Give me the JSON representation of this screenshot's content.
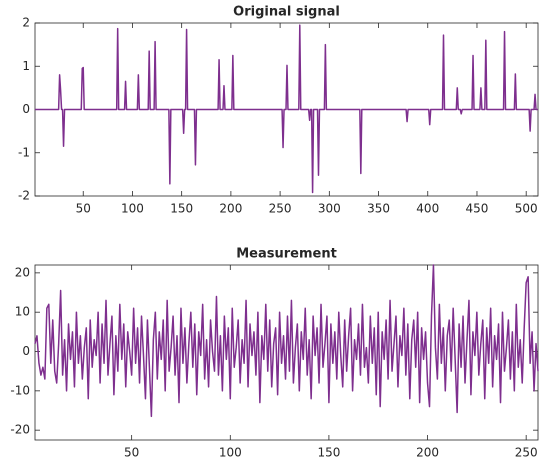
{
  "chart_data": [
    {
      "type": "line",
      "title": "Original signal",
      "color": "#7e2f8e",
      "x": [
        1,
        25,
        26,
        27,
        28,
        29,
        30,
        31,
        48,
        49,
        50,
        51,
        84,
        85,
        86,
        92,
        93,
        94,
        105,
        106,
        107,
        116,
        117,
        118,
        122,
        123,
        124,
        137,
        138,
        139,
        151,
        152,
        153,
        154,
        155,
        156,
        163,
        164,
        165,
        187,
        188,
        189,
        192,
        193,
        194,
        201,
        202,
        203,
        252,
        253,
        254,
        256,
        257,
        258,
        269,
        270,
        271,
        279,
        280,
        281,
        282,
        283,
        284,
        288,
        289,
        290,
        295,
        296,
        297,
        331,
        332,
        333,
        378,
        379,
        380,
        401,
        402,
        403,
        415,
        416,
        417,
        429,
        430,
        431,
        433,
        434,
        435,
        445,
        446,
        447,
        453,
        454,
        455,
        458,
        459,
        460,
        477,
        478,
        479,
        488,
        489,
        490,
        503,
        504,
        505,
        508,
        509,
        510,
        512
      ],
      "values": [
        0,
        0,
        0.8,
        0.45,
        0,
        0,
        -0.85,
        0,
        0,
        0.95,
        0.97,
        0,
        0,
        1.87,
        0,
        0,
        0.65,
        0,
        0,
        0.8,
        0,
        0,
        1.35,
        0,
        0,
        1.57,
        0,
        0,
        -1.72,
        0,
        0,
        -0.55,
        0,
        0,
        1.85,
        0,
        0,
        -1.28,
        0,
        0,
        1.15,
        0,
        0,
        0.55,
        0,
        0,
        1.25,
        0,
        0,
        -0.88,
        0,
        0,
        1.02,
        0,
        0,
        1.95,
        0,
        0,
        -0.25,
        0,
        0,
        -1.92,
        0,
        0,
        -1.52,
        0,
        0,
        1.5,
        0,
        0,
        -1.48,
        0,
        0,
        -0.28,
        0,
        0,
        -0.35,
        0,
        0,
        1.72,
        0,
        0,
        0.5,
        0,
        0,
        -0.1,
        0,
        0,
        1.25,
        0,
        0,
        0.5,
        0,
        0,
        1.6,
        0,
        0,
        1.8,
        0,
        0,
        0.82,
        0,
        0,
        -0.5,
        0,
        0,
        0.35,
        0,
        0
      ],
      "xlim": [
        1,
        512
      ],
      "xticks": [
        50,
        100,
        150,
        200,
        250,
        300,
        350,
        400,
        450,
        500
      ],
      "ylim": [
        -2,
        2
      ],
      "yticks": [
        -2,
        -1,
        0,
        1,
        2
      ]
    },
    {
      "type": "line",
      "title": "Measurement",
      "color": "#7e2f8e",
      "x": [
        1,
        2,
        3,
        4,
        5,
        6,
        7,
        8,
        9,
        10,
        11,
        12,
        13,
        14,
        15,
        16,
        17,
        18,
        19,
        20,
        21,
        22,
        23,
        24,
        25,
        26,
        27,
        28,
        29,
        30,
        31,
        32,
        33,
        34,
        35,
        36,
        37,
        38,
        39,
        40,
        41,
        42,
        43,
        44,
        45,
        46,
        47,
        48,
        49,
        50,
        51,
        52,
        53,
        54,
        55,
        56,
        57,
        58,
        59,
        60,
        61,
        62,
        63,
        64,
        65,
        66,
        67,
        68,
        69,
        70,
        71,
        72,
        73,
        74,
        75,
        76,
        77,
        78,
        79,
        80,
        81,
        82,
        83,
        84,
        85,
        86,
        87,
        88,
        89,
        90,
        91,
        92,
        93,
        94,
        95,
        96,
        97,
        98,
        99,
        100,
        101,
        102,
        103,
        104,
        105,
        106,
        107,
        108,
        109,
        110,
        111,
        112,
        113,
        114,
        115,
        116,
        117,
        118,
        119,
        120,
        121,
        122,
        123,
        124,
        125,
        126,
        127,
        128,
        129,
        130,
        131,
        132,
        133,
        134,
        135,
        136,
        137,
        138,
        139,
        140,
        141,
        142,
        143,
        144,
        145,
        146,
        147,
        148,
        149,
        150,
        151,
        152,
        153,
        154,
        155,
        156,
        157,
        158,
        159,
        160,
        161,
        162,
        163,
        164,
        165,
        166,
        167,
        168,
        169,
        170,
        171,
        172,
        173,
        174,
        175,
        176,
        177,
        178,
        179,
        180,
        181,
        182,
        183,
        184,
        185,
        186,
        187,
        188,
        189,
        190,
        191,
        192,
        193,
        194,
        195,
        196,
        197,
        198,
        199,
        200,
        201,
        202,
        203,
        204,
        205,
        206,
        207,
        208,
        209,
        210,
        211,
        212,
        213,
        214,
        215,
        216,
        217,
        218,
        219,
        220,
        221,
        222,
        223,
        224,
        225,
        226,
        227,
        228,
        229,
        230,
        231,
        232,
        233,
        234,
        235,
        236,
        237,
        238,
        239,
        240,
        241,
        242,
        243,
        244,
        245,
        246,
        247,
        248,
        249,
        250,
        251,
        252,
        253,
        254,
        255,
        256
      ],
      "values": [
        2,
        4,
        -3,
        -6,
        -4,
        -7,
        11,
        12,
        -3,
        8,
        -5,
        -8,
        2,
        15.5,
        -6,
        3,
        -10,
        7,
        -2,
        5,
        -9,
        10,
        -3,
        4,
        -7,
        1,
        6,
        -12,
        8,
        -4,
        3,
        -1,
        10,
        -8,
        7,
        -3,
        13,
        -6,
        2,
        9,
        -11,
        4,
        -5,
        12,
        -2,
        7,
        -9,
        5,
        0,
        -6,
        11,
        -3,
        6,
        -8,
        9,
        -1,
        -12,
        8,
        -4,
        -16.5,
        3,
        10,
        -7,
        5,
        -2,
        8,
        -10,
        13,
        -5,
        1,
        9,
        -6,
        4,
        -13,
        11,
        -3,
        6,
        -8,
        2,
        10,
        -4,
        7,
        -11,
        5,
        -1,
        12,
        -7,
        3,
        -9,
        8,
        0,
        -5,
        14,
        -6,
        4,
        -10,
        9,
        -2,
        6,
        -12,
        11,
        -4,
        1,
        8,
        -8,
        3,
        -3,
        13,
        -9,
        7,
        -1,
        5,
        -6,
        10,
        -13,
        4,
        -2,
        12,
        -5,
        8,
        -9,
        2,
        6,
        -11,
        10,
        -3,
        4,
        -7,
        9,
        -5,
        13,
        -8,
        1,
        7,
        -10,
        5,
        -2,
        11,
        -6,
        3,
        -12,
        9,
        -1,
        6,
        -8,
        12,
        -4,
        2,
        9,
        -13,
        7,
        -3,
        5,
        -7,
        10,
        -1,
        -9,
        8,
        -5,
        4,
        11,
        -10,
        3,
        -2,
        7,
        -6,
        12,
        -4,
        1,
        -8,
        9,
        -3,
        6,
        -11,
        10,
        -14,
        5,
        -2,
        8,
        -7,
        13,
        -5,
        2,
        9,
        -9,
        4,
        -1,
        11,
        -6,
        7,
        -12,
        3,
        8,
        -4,
        10,
        -13,
        6,
        -2,
        5,
        -8,
        -14,
        9,
        22,
        1,
        -7,
        12,
        -3,
        6,
        -10,
        4,
        8,
        -5,
        11,
        -2,
        -15.5,
        7,
        -4,
        9,
        -8,
        3,
        13,
        -11,
        5,
        -1,
        10,
        -6,
        2,
        8,
        -12,
        6,
        -3,
        11,
        -9,
        4,
        -2,
        7,
        -13,
        10,
        -5,
        1,
        8,
        -7,
        5,
        -10,
        12,
        -4,
        3,
        -8,
        6,
        17.5,
        19,
        -3,
        5,
        -10,
        2,
        -5
      ],
      "xlim": [
        1,
        256
      ],
      "xticks": [
        50,
        100,
        150,
        200,
        250
      ],
      "ylim": [
        -22.5,
        22
      ],
      "yticks": [
        -20,
        -10,
        0,
        10,
        20
      ]
    }
  ]
}
